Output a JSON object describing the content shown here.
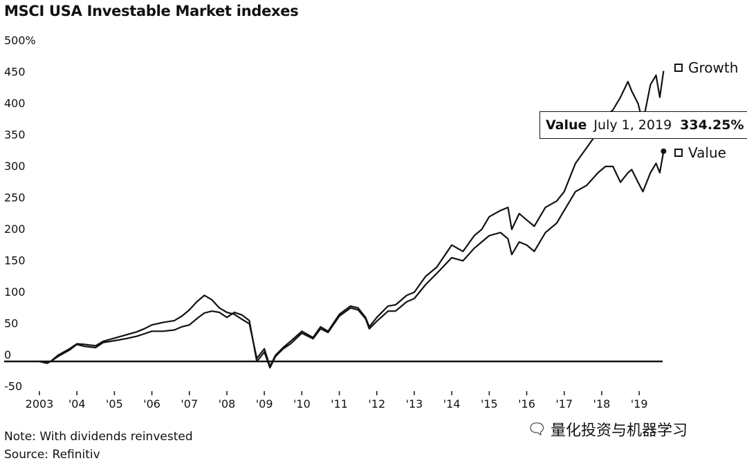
{
  "chart_data": {
    "type": "line",
    "title": "MSCI USA Investable Market indexes",
    "y_unit": "%",
    "ylim": [
      -50,
      500
    ],
    "y_ticks": [
      "500%",
      "450",
      "400",
      "350",
      "300",
      "250",
      "200",
      "150",
      "100",
      "50",
      "0",
      "-50"
    ],
    "y_tick_values": [
      500,
      450,
      400,
      350,
      300,
      250,
      200,
      150,
      100,
      50,
      0,
      -50
    ],
    "xlim": [
      2003.0,
      2020.4
    ],
    "x_ticks": [
      "2003",
      "'04",
      "'05",
      "'06",
      "'07",
      "'08",
      "'09",
      "'10",
      "'11",
      "'12",
      "'13",
      "'14",
      "'15",
      "'16",
      "'17",
      "'18",
      "'19"
    ],
    "x_tick_values": [
      2003,
      2004,
      2005,
      2006,
      2007,
      2008,
      2009,
      2010,
      2011,
      2012,
      2013,
      2014,
      2015,
      2016,
      2017,
      2018,
      2019
    ],
    "series": [
      {
        "name": "Growth",
        "x": [
          2003.0,
          2003.2,
          2003.3,
          2003.5,
          2003.8,
          2004.0,
          2004.2,
          2004.5,
          2004.7,
          2005.0,
          2005.3,
          2005.6,
          2005.8,
          2006.0,
          2006.3,
          2006.6,
          2006.8,
          2007.0,
          2007.2,
          2007.4,
          2007.6,
          2007.8,
          2008.0,
          2008.2,
          2008.4,
          2008.6,
          2008.8,
          2009.0,
          2009.15,
          2009.3,
          2009.5,
          2009.7,
          2010.0,
          2010.3,
          2010.5,
          2010.7,
          2011.0,
          2011.3,
          2011.5,
          2011.7,
          2011.8,
          2012.0,
          2012.3,
          2012.5,
          2012.8,
          2013.0,
          2013.3,
          2013.6,
          2014.0,
          2014.3,
          2014.6,
          2014.8,
          2015.0,
          2015.3,
          2015.5,
          2015.6,
          2015.8,
          2016.0,
          2016.2,
          2016.5,
          2016.8,
          2017.0,
          2017.3,
          2017.6,
          2017.9,
          2018.1,
          2018.3,
          2018.5,
          2018.7,
          2018.8,
          2018.97,
          2019.1,
          2019.3,
          2019.45,
          2019.55,
          2019.65
        ],
        "values": [
          0,
          -3,
          0,
          10,
          20,
          28,
          27,
          25,
          32,
          37,
          42,
          47,
          52,
          58,
          62,
          65,
          72,
          82,
          95,
          105,
          98,
          85,
          78,
          75,
          67,
          60,
          5,
          20,
          -8,
          10,
          22,
          32,
          48,
          38,
          55,
          48,
          75,
          88,
          85,
          70,
          55,
          70,
          88,
          90,
          105,
          110,
          135,
          150,
          185,
          175,
          200,
          210,
          230,
          240,
          245,
          210,
          235,
          225,
          215,
          245,
          255,
          270,
          315,
          340,
          365,
          390,
          400,
          420,
          445,
          430,
          410,
          380,
          440,
          455,
          420,
          462
        ]
      },
      {
        "name": "Value",
        "x": [
          2003.0,
          2003.2,
          2003.3,
          2003.5,
          2003.8,
          2004.0,
          2004.2,
          2004.5,
          2004.7,
          2005.0,
          2005.3,
          2005.6,
          2005.8,
          2006.0,
          2006.3,
          2006.6,
          2006.8,
          2007.0,
          2007.2,
          2007.4,
          2007.6,
          2007.8,
          2008.0,
          2008.2,
          2008.4,
          2008.6,
          2008.8,
          2009.0,
          2009.15,
          2009.3,
          2009.5,
          2009.7,
          2010.0,
          2010.3,
          2010.5,
          2010.7,
          2011.0,
          2011.3,
          2011.5,
          2011.7,
          2011.8,
          2012.0,
          2012.3,
          2012.5,
          2012.8,
          2013.0,
          2013.3,
          2013.6,
          2014.0,
          2014.3,
          2014.6,
          2014.8,
          2015.0,
          2015.3,
          2015.5,
          2015.6,
          2015.8,
          2016.0,
          2016.2,
          2016.5,
          2016.8,
          2017.0,
          2017.3,
          2017.6,
          2017.9,
          2018.1,
          2018.3,
          2018.5,
          2018.7,
          2018.8,
          2018.97,
          2019.1,
          2019.3,
          2019.45,
          2019.55,
          2019.65
        ],
        "values": [
          0,
          -2,
          0,
          8,
          18,
          27,
          24,
          22,
          30,
          33,
          36,
          40,
          44,
          48,
          48,
          50,
          55,
          58,
          68,
          77,
          80,
          78,
          70,
          78,
          74,
          65,
          0,
          15,
          -10,
          8,
          20,
          28,
          45,
          36,
          52,
          46,
          72,
          85,
          82,
          68,
          52,
          64,
          80,
          80,
          95,
          100,
          122,
          140,
          165,
          160,
          180,
          190,
          200,
          205,
          195,
          170,
          190,
          185,
          175,
          205,
          220,
          240,
          270,
          280,
          300,
          310,
          310,
          285,
          300,
          305,
          285,
          270,
          300,
          315,
          300,
          334.25
        ]
      }
    ],
    "tooltip": {
      "series": "Value",
      "date": "July 1, 2019",
      "value": "334.25%"
    }
  },
  "legend": {
    "growth": "Growth",
    "value": "Value"
  },
  "footer": {
    "note": "Note: With dividends reinvested",
    "source": "Source: Refinitiv"
  },
  "watermark": {
    "text": "量化投资与机器学习",
    "icon": "wechat-icon"
  },
  "colors": {
    "line": "#111111",
    "background": "#ffffff"
  }
}
